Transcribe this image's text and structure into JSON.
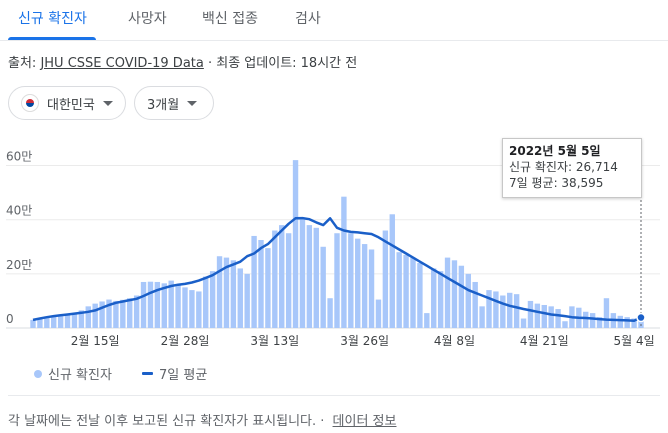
{
  "tabs": [
    {
      "label": "신규 확진자",
      "active": true
    },
    {
      "label": "사망자",
      "active": false
    },
    {
      "label": "백신 접종",
      "active": false
    },
    {
      "label": "검사",
      "active": false
    }
  ],
  "source": {
    "prefix": "출처: ",
    "link": "JHU CSSE COVID-19 Data",
    "updated": " · 최종 업데이트: 18시간 전"
  },
  "filters": {
    "region": "대한민국",
    "period": "3개월"
  },
  "tooltip": {
    "date": "2022년 5월 5일",
    "cases": "신규 확진자: 26,714",
    "avg": "7일 평균: 38,595"
  },
  "legend": {
    "bars": "신규 확진자",
    "line": "7일 평균"
  },
  "footer": {
    "text": "각 날짜에는 전날 이후 보고된 신규 확진자가 표시됩니다.",
    "link": "데이터 정보"
  },
  "colors": {
    "bar": "#a8c7fa",
    "line": "#1a5fc8",
    "accent": "#1a73e8"
  },
  "chart_data": {
    "type": "bar",
    "title": "",
    "xlabel": "",
    "ylabel": "",
    "ylim": [
      0,
      65
    ],
    "unit": "만",
    "yticks": [
      {
        "value": 0,
        "label": "0"
      },
      {
        "value": 20,
        "label": "20만"
      },
      {
        "value": 40,
        "label": "40만"
      },
      {
        "value": 60,
        "label": "60만"
      }
    ],
    "xticks": [
      {
        "index": 9,
        "label": "2월 15일"
      },
      {
        "index": 22,
        "label": "2월 28일"
      },
      {
        "index": 35,
        "label": "3월 13일"
      },
      {
        "index": 48,
        "label": "3월 26일"
      },
      {
        "index": 61,
        "label": "4월 8일"
      },
      {
        "index": 74,
        "label": "4월 21일"
      },
      {
        "index": 87,
        "label": "5월 4일"
      }
    ],
    "grid": true,
    "legend_position": "bottom-left",
    "highlight_index": 88,
    "series": [
      {
        "name": "신규 확진자",
        "kind": "bar",
        "values": [
          3.0,
          3.4,
          4.0,
          4.5,
          4.8,
          5.0,
          5.4,
          6.5,
          8.0,
          9.0,
          9.8,
          10.5,
          10.0,
          10.4,
          11.0,
          12.0,
          17.0,
          17.1,
          17.0,
          16.5,
          17.5,
          16.0,
          15.0,
          14.0,
          13.5,
          19.0,
          21.0,
          26.5,
          26.0,
          25.0,
          22.0,
          20.0,
          34.0,
          32.5,
          29.5,
          36.0,
          38.0,
          35.0,
          62.0,
          40.0,
          38.0,
          37.0,
          30.0,
          11.0,
          35.0,
          48.5,
          35.0,
          33.0,
          31.0,
          29.0,
          10.5,
          36.0,
          42.0,
          28.0,
          27.0,
          26.0,
          24.0,
          5.5,
          22.0,
          21.0,
          26.0,
          25.0,
          23.0,
          20.0,
          17.0,
          8.0,
          14.0,
          13.5,
          12.0,
          13.0,
          12.5,
          3.5,
          10.0,
          9.0,
          8.5,
          8.0,
          7.0,
          2.5,
          8.0,
          7.5,
          6.0,
          5.5,
          4.0,
          11.0,
          5.5,
          4.5,
          4.0,
          3.5,
          2.7
        ]
      },
      {
        "name": "7일 평균",
        "kind": "line",
        "values": [
          3.0,
          3.5,
          4.0,
          4.4,
          4.7,
          5.0,
          5.3,
          5.6,
          6.0,
          6.5,
          7.5,
          8.5,
          9.3,
          9.8,
          10.3,
          10.8,
          11.8,
          13.0,
          14.0,
          14.8,
          15.5,
          16.0,
          16.3,
          16.8,
          17.5,
          18.5,
          19.5,
          21.0,
          22.5,
          23.5,
          24.5,
          26.5,
          27.5,
          29.5,
          31.0,
          33.5,
          36.0,
          38.5,
          40.5,
          40.6,
          40.2,
          39.0,
          38.0,
          40.5,
          37.0,
          36.0,
          35.5,
          35.3,
          35.0,
          34.7,
          33.5,
          32.0,
          30.5,
          29.0,
          27.5,
          26.0,
          24.5,
          23.0,
          21.5,
          20.0,
          18.5,
          17.0,
          15.5,
          14.0,
          13.0,
          12.0,
          11.0,
          10.0,
          9.0,
          8.2,
          7.6,
          7.0,
          6.5,
          6.0,
          5.5,
          5.0,
          4.7,
          4.4,
          4.0,
          3.8,
          3.7,
          3.5,
          3.3,
          3.1,
          3.0,
          2.9,
          2.8,
          2.7,
          3.86
        ]
      }
    ]
  }
}
